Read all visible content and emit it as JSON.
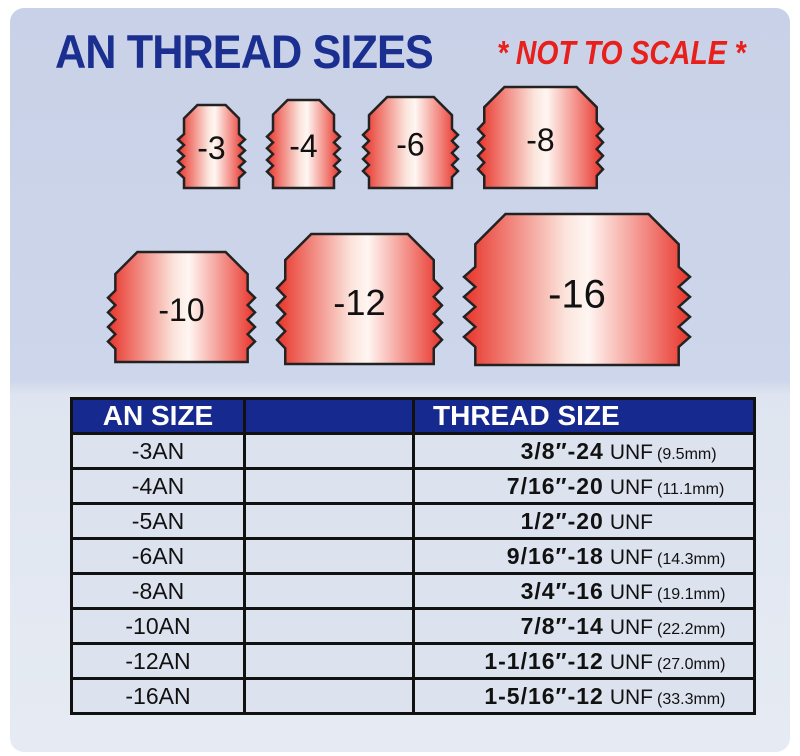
{
  "title": "AN THREAD SIZES",
  "subtitle": "* NOT TO SCALE *",
  "colors": {
    "title": "#1a2f8f",
    "subtitle": "#e8201c",
    "header": "#16298e",
    "fitting": "#e8342a"
  },
  "fittings": [
    "-3",
    "-4",
    "-6",
    "-8",
    "-10",
    "-12",
    "-16"
  ],
  "table": {
    "headers": [
      "AN SIZE",
      "",
      "THREAD SIZE"
    ],
    "rows": [
      {
        "an": "-3AN",
        "thread": "3/8″-24",
        "unf": "UNF",
        "mm": "(9.5mm)"
      },
      {
        "an": "-4AN",
        "thread": "7/16″-20",
        "unf": "UNF",
        "mm": "(11.1mm)"
      },
      {
        "an": "-5AN",
        "thread": "1/2″-20",
        "unf": "UNF",
        "mm": ""
      },
      {
        "an": "-6AN",
        "thread": "9/16″-18",
        "unf": "UNF",
        "mm": "(14.3mm)"
      },
      {
        "an": "-8AN",
        "thread": "3/4″-16",
        "unf": "UNF",
        "mm": "(19.1mm)"
      },
      {
        "an": "-10AN",
        "thread": "7/8″-14",
        "unf": "UNF",
        "mm": "(22.2mm)"
      },
      {
        "an": "-12AN",
        "thread": "1-1/16″-12",
        "unf": "UNF",
        "mm": "(27.0mm)"
      },
      {
        "an": "-16AN",
        "thread": "1-5/16″-12",
        "unf": "UNF",
        "mm": "(33.3mm)"
      }
    ]
  }
}
